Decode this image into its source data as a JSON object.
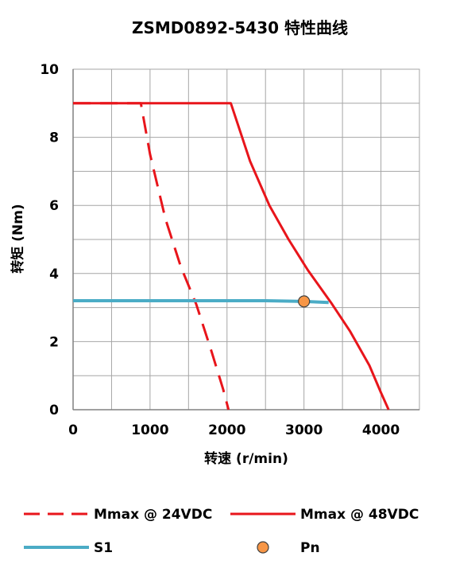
{
  "chart_data": {
    "type": "line",
    "title": "ZSMD0892-5430 特性曲线",
    "xlabel": "转速 (r/min)",
    "ylabel": "转矩 (Nm)",
    "xlim": [
      0,
      4500
    ],
    "ylim": [
      0,
      10
    ],
    "xticks": [
      0,
      1000,
      2000,
      3000,
      4000
    ],
    "yticks": [
      0,
      2,
      4,
      6,
      8,
      10
    ],
    "x_tick_labels": [
      "0",
      "1000",
      "2000",
      "3000",
      "4000"
    ],
    "y_tick_labels": [
      "0",
      "2",
      "4",
      "6",
      "8",
      "10"
    ],
    "grid": true,
    "legend_position": "bottom",
    "series": [
      {
        "name": "Mmax @ 24VDC",
        "style": "dashed",
        "color": "#e8151b",
        "x": [
          0,
          880,
          1000,
          1200,
          1400,
          1600,
          1800,
          1950,
          2020
        ],
        "y": [
          9.0,
          9.0,
          7.5,
          5.6,
          4.2,
          3.1,
          1.7,
          0.6,
          0.0
        ]
      },
      {
        "name": "Mmax @ 48VDC",
        "style": "solid",
        "color": "#e8151b",
        "x": [
          0,
          2050,
          2300,
          2550,
          2800,
          3050,
          3350,
          3600,
          3850,
          4000,
          4100
        ],
        "y": [
          9.0,
          9.0,
          7.3,
          6.0,
          5.0,
          4.1,
          3.15,
          2.3,
          1.3,
          0.5,
          0.0
        ]
      },
      {
        "name": "S1",
        "style": "solid",
        "color": "#4bacc6",
        "x": [
          0,
          2500,
          3000,
          3320
        ],
        "y": [
          3.2,
          3.2,
          3.18,
          3.15
        ]
      },
      {
        "name": "Pn",
        "style": "marker",
        "color": "#f79646",
        "x": [
          3000
        ],
        "y": [
          3.18
        ]
      }
    ]
  }
}
